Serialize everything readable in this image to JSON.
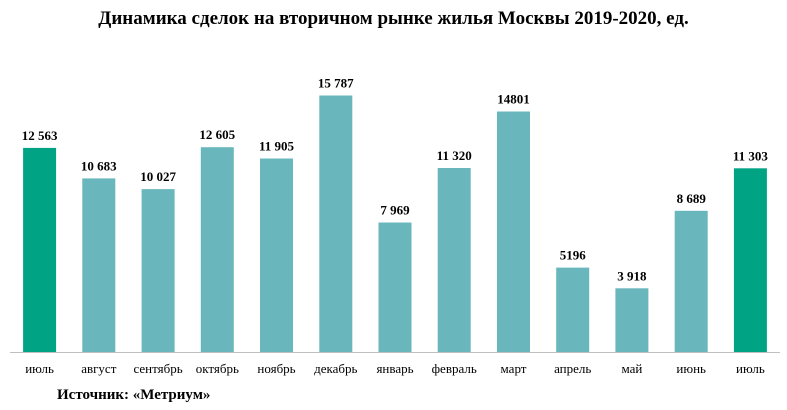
{
  "chart_data": {
    "type": "bar",
    "title": "Динамика сделок на вторичном рынке жилья Москвы 2019-2020, ед.",
    "categories": [
      "июль",
      "август",
      "сентябрь",
      "октябрь",
      "ноябрь",
      "декабрь",
      "январь",
      "февраль",
      "март",
      "апрель",
      "май",
      "июнь",
      "июль"
    ],
    "values": [
      12563,
      10683,
      10027,
      12605,
      11905,
      15787,
      7969,
      11320,
      14801,
      5196,
      3918,
      8689,
      11303
    ],
    "value_labels": [
      "12 563",
      "10 683",
      "10 027",
      "12 605",
      "11 905",
      "15 787",
      "7 969",
      "11 320",
      "14801",
      "5196",
      "3 918",
      "8 689",
      "11 303"
    ],
    "highlighted": [
      true,
      false,
      false,
      false,
      false,
      false,
      false,
      false,
      false,
      false,
      false,
      false,
      true
    ],
    "colors": {
      "bar": "#69b7bd",
      "highlight": "#00a384",
      "axis": "#bfbfbf"
    },
    "xlabel": "",
    "ylabel": "",
    "ylim": [
      0,
      16000
    ],
    "grid": false,
    "legend": "none"
  },
  "source": "Источник: «Метриум»"
}
